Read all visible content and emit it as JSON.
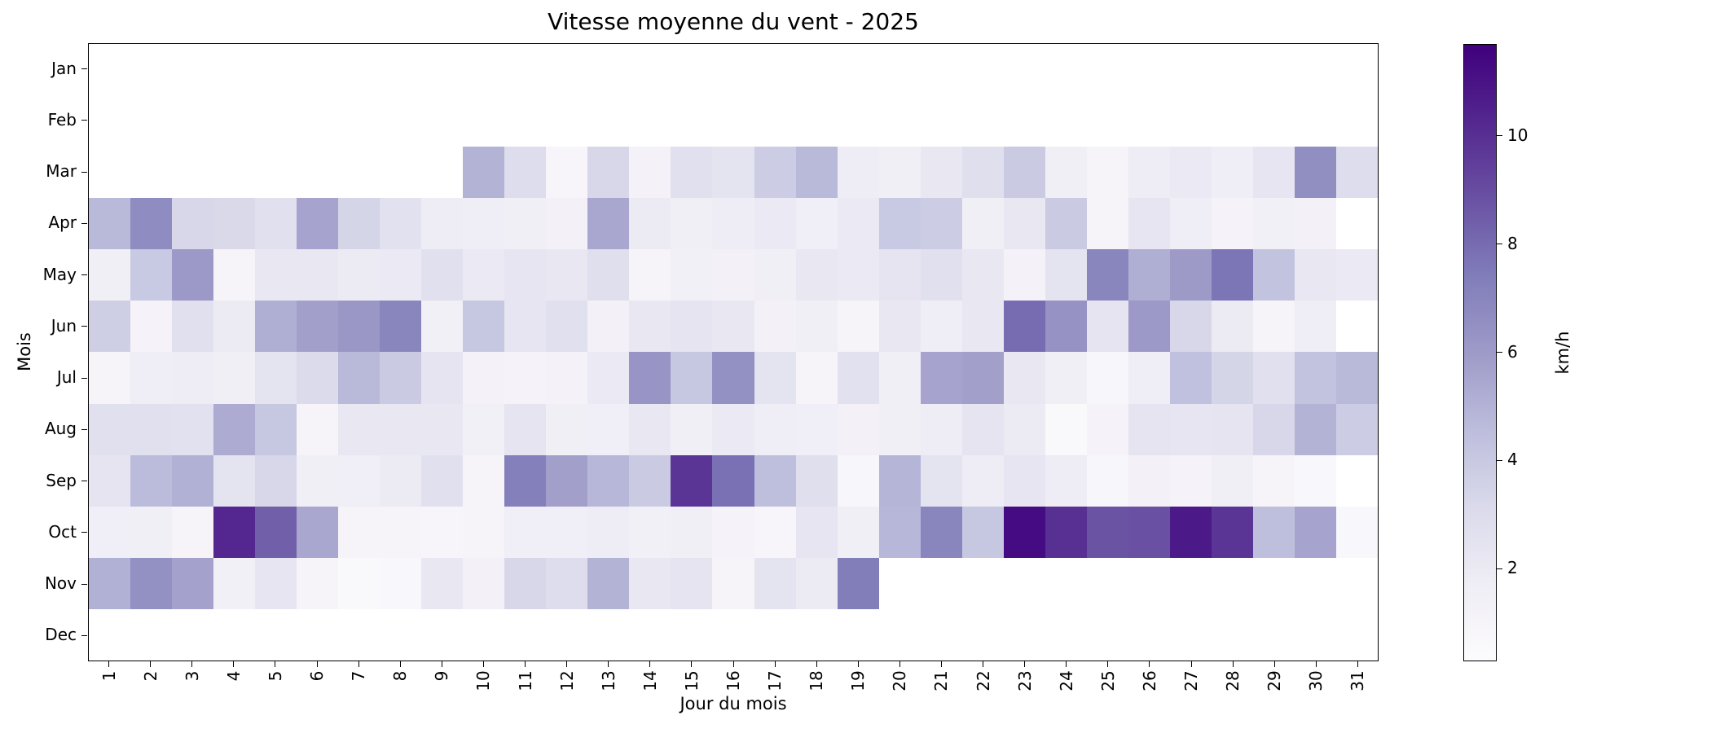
{
  "chart_data": {
    "type": "heatmap",
    "title": "Vitesse moyenne du vent - 2025",
    "xlabel": "Jour du mois",
    "ylabel": "Mois",
    "x_tick_labels": [
      "1",
      "2",
      "3",
      "4",
      "5",
      "6",
      "7",
      "8",
      "9",
      "10",
      "11",
      "12",
      "13",
      "14",
      "15",
      "16",
      "17",
      "18",
      "19",
      "20",
      "21",
      "22",
      "23",
      "24",
      "25",
      "26",
      "27",
      "28",
      "29",
      "30",
      "31"
    ],
    "y_tick_labels": [
      "Jan",
      "Feb",
      "Mar",
      "Apr",
      "May",
      "Jun",
      "Jul",
      "Aug",
      "Sep",
      "Oct",
      "Nov",
      "Dec"
    ],
    "colormap": "Purples",
    "grid": false,
    "no_data_color": "#ffffff",
    "colorbar": {
      "label": "km/h",
      "ticks": [
        2,
        4,
        6,
        8,
        10
      ],
      "vmin": 0.3,
      "vmax": 11.7,
      "position": "right",
      "stops": [
        "#fcfbfd",
        "#efedf5",
        "#dadaeb",
        "#bcbddc",
        "#9e9ac8",
        "#807dba",
        "#6a51a3",
        "#54278f",
        "#3f007d"
      ]
    },
    "values": [
      [
        null,
        null,
        null,
        null,
        null,
        null,
        null,
        null,
        null,
        null,
        null,
        null,
        null,
        null,
        null,
        null,
        null,
        null,
        null,
        null,
        null,
        null,
        null,
        null,
        null,
        null,
        null,
        null,
        null,
        null,
        null
      ],
      [
        null,
        null,
        null,
        null,
        null,
        null,
        null,
        null,
        null,
        null,
        null,
        null,
        null,
        null,
        null,
        null,
        null,
        null,
        null,
        null,
        null,
        null,
        null,
        null,
        null,
        null,
        null,
        null,
        null,
        null,
        null
      ],
      [
        null,
        null,
        null,
        null,
        null,
        null,
        null,
        null,
        null,
        5.0,
        2.9,
        0.9,
        3.3,
        1.2,
        2.7,
        2.5,
        3.8,
        4.7,
        1.8,
        1.5,
        2.2,
        2.8,
        3.9,
        1.5,
        1.0,
        1.8,
        2.0,
        1.7,
        2.3,
        6.6,
        2.9
      ],
      [
        4.7,
        6.7,
        3.3,
        3.2,
        2.7,
        5.6,
        3.4,
        2.6,
        1.8,
        1.7,
        1.5,
        1.3,
        5.5,
        1.9,
        1.5,
        1.8,
        2.0,
        1.6,
        2.0,
        4.0,
        3.8,
        1.5,
        2.2,
        3.9,
        1.0,
        2.3,
        1.7,
        1.1,
        1.4,
        1.3,
        null
      ],
      [
        1.5,
        4.0,
        6.1,
        1.0,
        2.2,
        2.1,
        1.9,
        2.0,
        2.7,
        2.0,
        2.3,
        2.1,
        2.8,
        1.0,
        1.4,
        1.3,
        1.5,
        2.1,
        2.0,
        2.4,
        2.7,
        2.1,
        1.2,
        2.5,
        7.0,
        5.2,
        6.0,
        7.7,
        4.3,
        2.2,
        2.0
      ],
      [
        3.7,
        1.1,
        2.7,
        1.9,
        5.2,
        5.8,
        6.2,
        7.0,
        1.4,
        4.1,
        2.3,
        2.7,
        1.3,
        2.2,
        2.4,
        2.2,
        1.3,
        1.5,
        1.0,
        2.1,
        1.7,
        2.2,
        8.0,
        6.4,
        2.4,
        6.1,
        3.3,
        1.9,
        1.0,
        1.7,
        null
      ],
      [
        1.0,
        1.7,
        1.8,
        1.5,
        2.5,
        3.1,
        4.7,
        3.9,
        2.4,
        1.2,
        1.1,
        1.2,
        2.0,
        6.3,
        4.1,
        6.5,
        2.5,
        1.0,
        2.6,
        1.5,
        5.6,
        5.8,
        2.2,
        1.5,
        0.8,
        1.7,
        4.4,
        3.4,
        2.7,
        4.3,
        4.7
      ],
      [
        2.7,
        2.7,
        2.6,
        5.3,
        4.1,
        1.0,
        2.2,
        2.2,
        2.1,
        1.4,
        2.4,
        1.5,
        1.6,
        2.1,
        1.5,
        2.0,
        1.7,
        1.6,
        1.3,
        1.5,
        1.8,
        2.4,
        1.9,
        0.6,
        1.1,
        2.4,
        2.3,
        2.4,
        3.3,
        5.0,
        3.8
      ],
      [
        2.4,
        4.6,
        5.1,
        2.5,
        3.3,
        1.5,
        1.6,
        1.9,
        2.7,
        1.0,
        7.3,
        5.8,
        4.8,
        3.9,
        9.8,
        7.8,
        4.5,
        2.8,
        0.8,
        4.9,
        2.5,
        1.8,
        2.3,
        1.8,
        0.8,
        1.3,
        1.1,
        1.5,
        1.0,
        0.7,
        null
      ],
      [
        1.6,
        1.5,
        1.0,
        10.3,
        8.4,
        5.5,
        1.0,
        1.0,
        0.9,
        1.0,
        1.6,
        1.6,
        1.8,
        1.4,
        1.5,
        1.1,
        0.9,
        2.3,
        1.5,
        4.8,
        7.0,
        4.1,
        11.3,
        10.0,
        8.8,
        8.9,
        10.8,
        9.8,
        4.5,
        5.6,
        0.7
      ],
      [
        5.1,
        6.5,
        5.7,
        1.4,
        2.3,
        1.0,
        0.6,
        0.7,
        2.1,
        1.3,
        3.3,
        2.9,
        5.0,
        2.2,
        2.4,
        1.0,
        2.5,
        1.9,
        7.4,
        null,
        null,
        null,
        null,
        null,
        null,
        null,
        null,
        null,
        null,
        null,
        null
      ],
      [
        null,
        null,
        null,
        null,
        null,
        null,
        null,
        null,
        null,
        null,
        null,
        null,
        null,
        null,
        null,
        null,
        null,
        null,
        null,
        null,
        null,
        null,
        null,
        null,
        null,
        null,
        null,
        null,
        null,
        null,
        null
      ]
    ]
  }
}
